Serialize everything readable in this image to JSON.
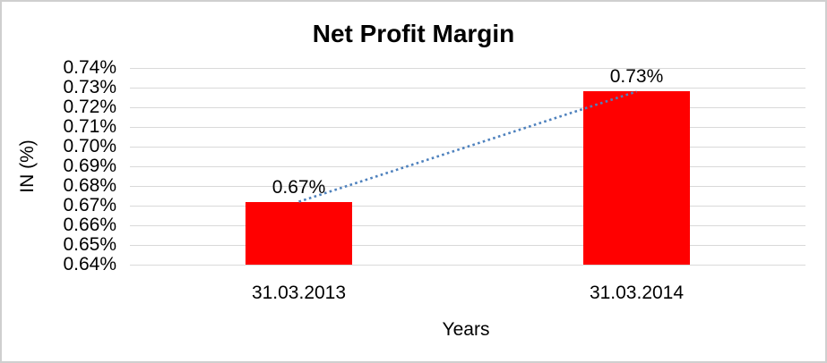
{
  "chart_data": {
    "type": "bar",
    "title": "Net Profit Margin",
    "xlabel": "Years",
    "ylabel": "IN (%)",
    "categories": [
      "31.03.2013",
      "31.03.2014"
    ],
    "values": [
      0.672,
      0.728
    ],
    "data_labels": [
      "0.67%",
      "0.73%"
    ],
    "ylim": [
      0.64,
      0.74
    ],
    "ytick_step": 0.01,
    "ytick_labels": [
      "0.74%",
      "0.73%",
      "0.72%",
      "0.71%",
      "0.70%",
      "0.69%",
      "0.68%",
      "0.67%",
      "0.66%",
      "0.65%",
      "0.64%"
    ],
    "grid": true,
    "legend_position": "none",
    "bar_color": "#ff0000",
    "gridline_color": "#d9d9d9",
    "trendline": {
      "type": "linear",
      "style": "dotted",
      "color": "#4e81bd"
    }
  }
}
